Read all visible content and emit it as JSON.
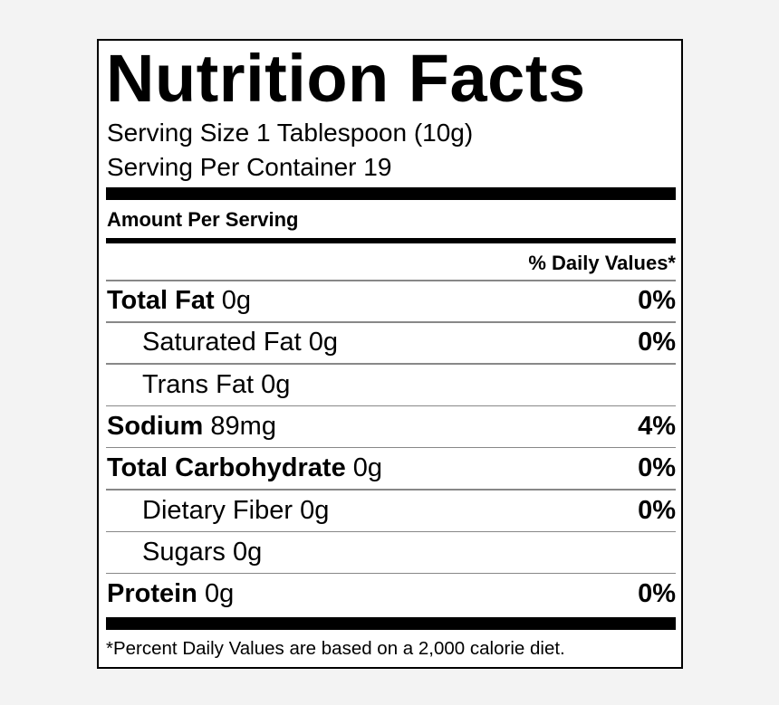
{
  "title": "Nutrition Facts",
  "serving_size": "Serving Size 1 Tablespoon (10g)",
  "servings_per_container": "Serving Per Container 19",
  "amount_per_serving": "Amount Per Serving",
  "daily_values_header": "% Daily Values*",
  "rows": [
    {
      "name": "Total Fat",
      "amount": "0g",
      "daily_value": "0%",
      "indent": false
    },
    {
      "name": "Saturated Fat",
      "amount": "0g",
      "daily_value": "0%",
      "indent": true
    },
    {
      "name": "Trans Fat",
      "amount": "0g",
      "indent": true
    },
    {
      "name": "Sodium",
      "amount": "89mg",
      "daily_value": "4%",
      "indent": false
    },
    {
      "name": "Total Carbohydrate",
      "amount": "0g",
      "daily_value": "0%",
      "indent": false
    },
    {
      "name": "Dietary Fiber",
      "amount": "0g",
      "daily_value": "0%",
      "indent": true
    },
    {
      "name": "Sugars",
      "amount": "0g",
      "indent": true
    },
    {
      "name": "Protein",
      "amount": "0g",
      "daily_value": "0%",
      "indent": false
    }
  ],
  "footnote": "*Percent Daily Values are based on a 2,000 calorie diet."
}
